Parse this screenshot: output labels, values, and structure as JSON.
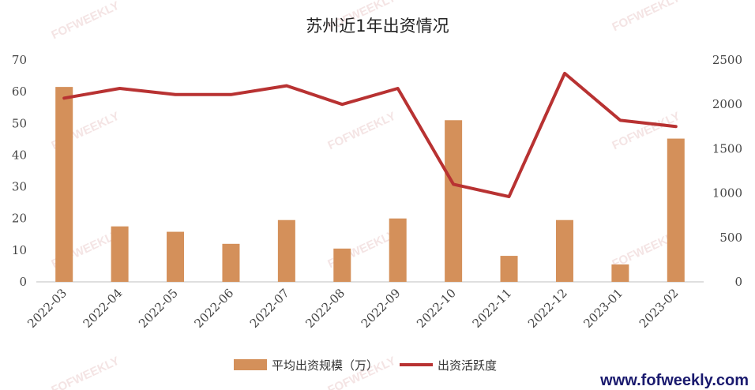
{
  "chart_data": {
    "type": "bar",
    "title": "苏州近1年出资情况",
    "categories": [
      "2022-03",
      "2022-04",
      "2022-05",
      "2022-06",
      "2022-07",
      "2022-08",
      "2022-09",
      "2022-10",
      "2022-11",
      "2022-12",
      "2023-01",
      "2023-02"
    ],
    "series": [
      {
        "name": "平均出资规模（万）",
        "type": "bar",
        "axis": "left",
        "color": "#d4905a",
        "values": [
          61.5,
          17.5,
          15.8,
          12,
          19.5,
          10.5,
          20,
          51,
          8.2,
          19.5,
          5.5,
          45.2
        ]
      },
      {
        "name": "出资活跃度",
        "type": "line",
        "axis": "right",
        "color": "#b83232",
        "values": [
          2070,
          2180,
          2110,
          2110,
          2210,
          2000,
          2180,
          1100,
          960,
          2350,
          1820,
          1750
        ]
      }
    ],
    "y_left": {
      "min": 0,
      "max": 70,
      "ticks": [
        0,
        10,
        20,
        30,
        40,
        50,
        60,
        70
      ]
    },
    "y_right": {
      "min": 0,
      "max": 2500,
      "ticks": [
        0,
        500,
        1000,
        1500,
        2000,
        2500
      ]
    },
    "grid": false,
    "legend": "bottom-center"
  },
  "footer": {
    "website": "www.fofweekly.com"
  },
  "watermark": {
    "text": "FOFWEEKLY"
  }
}
